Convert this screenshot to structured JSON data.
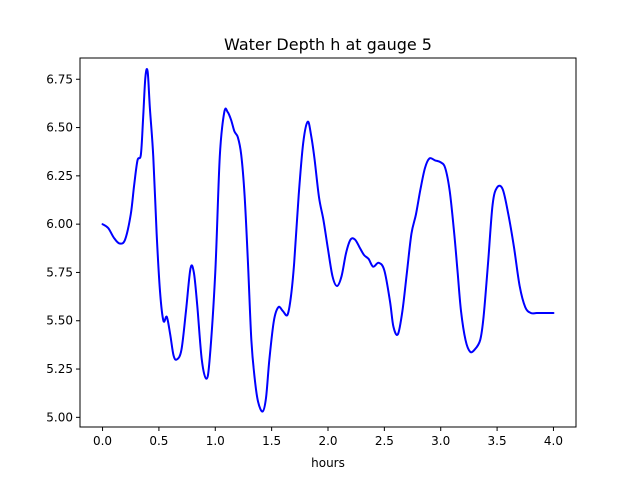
{
  "chart_data": {
    "type": "line",
    "title": "Water Depth h at gauge 5",
    "xlabel": "hours",
    "ylabel": "",
    "xlim": [
      -0.2,
      4.2
    ],
    "ylim": [
      4.95,
      6.86
    ],
    "grid": false,
    "line_color": "#0000ff",
    "xticks": [
      0.0,
      0.5,
      1.0,
      1.5,
      2.0,
      2.5,
      3.0,
      3.5,
      4.0
    ],
    "xtick_labels": [
      "0.0",
      "0.5",
      "1.0",
      "1.5",
      "2.0",
      "2.5",
      "3.0",
      "3.5",
      "4.0"
    ],
    "yticks": [
      5.0,
      5.25,
      5.5,
      5.75,
      6.0,
      6.25,
      6.5,
      6.75
    ],
    "ytick_labels": [
      "5.00",
      "5.25",
      "5.50",
      "5.75",
      "6.00",
      "6.25",
      "6.50",
      "6.75"
    ],
    "series": [
      {
        "x": [
          0.0,
          0.05,
          0.1,
          0.15,
          0.2,
          0.25,
          0.28,
          0.31,
          0.34,
          0.36,
          0.38,
          0.4,
          0.42,
          0.45,
          0.48,
          0.51,
          0.54,
          0.57,
          0.6,
          0.63,
          0.66,
          0.7,
          0.74,
          0.78,
          0.81,
          0.84,
          0.88,
          0.92,
          0.95,
          1.0,
          1.04,
          1.08,
          1.11,
          1.14,
          1.17,
          1.2,
          1.23,
          1.26,
          1.29,
          1.32,
          1.35,
          1.38,
          1.42,
          1.45,
          1.48,
          1.52,
          1.56,
          1.6,
          1.64,
          1.67,
          1.7,
          1.74,
          1.78,
          1.82,
          1.85,
          1.88,
          1.92,
          1.96,
          2.0,
          2.04,
          2.08,
          2.12,
          2.16,
          2.2,
          2.24,
          2.28,
          2.32,
          2.36,
          2.4,
          2.45,
          2.5,
          2.55,
          2.58,
          2.62,
          2.66,
          2.7,
          2.74,
          2.78,
          2.82,
          2.86,
          2.9,
          2.95,
          3.0,
          3.04,
          3.08,
          3.12,
          3.15,
          3.18,
          3.22,
          3.26,
          3.3,
          3.35,
          3.38,
          3.42,
          3.46,
          3.5,
          3.55,
          3.6,
          3.65,
          3.7,
          3.75,
          3.8,
          3.85,
          3.9,
          3.95,
          4.0
        ],
        "y": [
          6.0,
          5.98,
          5.93,
          5.9,
          5.92,
          6.05,
          6.2,
          6.33,
          6.36,
          6.55,
          6.76,
          6.79,
          6.6,
          6.35,
          5.95,
          5.65,
          5.5,
          5.52,
          5.43,
          5.32,
          5.3,
          5.35,
          5.55,
          5.77,
          5.75,
          5.58,
          5.3,
          5.2,
          5.3,
          5.75,
          6.35,
          6.58,
          6.58,
          6.54,
          6.48,
          6.45,
          6.36,
          6.15,
          5.8,
          5.4,
          5.2,
          5.08,
          5.03,
          5.1,
          5.3,
          5.5,
          5.57,
          5.55,
          5.53,
          5.62,
          5.8,
          6.15,
          6.42,
          6.53,
          6.46,
          6.34,
          6.14,
          6.02,
          5.87,
          5.73,
          5.68,
          5.73,
          5.85,
          5.92,
          5.92,
          5.88,
          5.84,
          5.82,
          5.78,
          5.8,
          5.76,
          5.6,
          5.47,
          5.43,
          5.55,
          5.75,
          5.95,
          6.05,
          6.18,
          6.29,
          6.34,
          6.33,
          6.32,
          6.29,
          6.17,
          5.95,
          5.75,
          5.55,
          5.4,
          5.34,
          5.35,
          5.4,
          5.52,
          5.8,
          6.1,
          6.19,
          6.18,
          6.05,
          5.88,
          5.68,
          5.57,
          5.54,
          5.54,
          5.54,
          5.54,
          5.54
        ]
      }
    ]
  }
}
